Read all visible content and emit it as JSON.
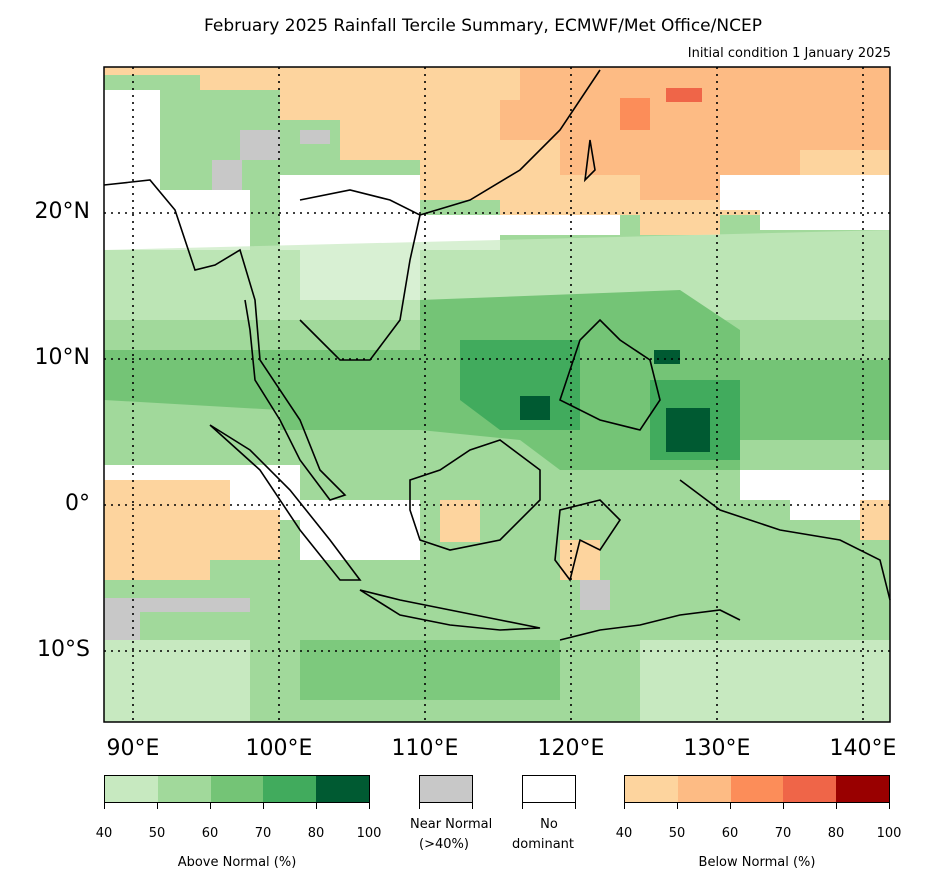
{
  "title": "February 2025 Rainfall Tercile Summary, ECMWF/Met Office/NCEP",
  "subtitle": "Initial condition 1 January 2025",
  "lat_labels": [
    "20°N",
    "10°N",
    "0°",
    "10°S"
  ],
  "lon_labels": [
    "90°E",
    "100°E",
    "110°E",
    "120°E",
    "130°E",
    "140°E"
  ],
  "colors": {
    "above": [
      "#c7e9c0",
      "#a1d99b",
      "#74c476",
      "#41ab5d",
      "#005a32"
    ],
    "below": [
      "#fdd49e",
      "#fdbb84",
      "#fc8d59",
      "#ef6548",
      "#990000"
    ],
    "near_normal": "#c8c8c8",
    "no_dominant": "#ffffff"
  },
  "legend": {
    "above_label": "Above Normal (%)",
    "above_ticks": [
      "40",
      "50",
      "60",
      "70",
      "80",
      "100"
    ],
    "near_normal_label_1": "Near Normal",
    "near_normal_label_2": "(>40%)",
    "no_dominant_label_1": "No",
    "no_dominant_label_2": "dominant",
    "below_label": "Below Normal (%)",
    "below_ticks": [
      "40",
      "50",
      "60",
      "70",
      "80",
      "100"
    ]
  },
  "map_extent": {
    "lon": [
      88,
      142
    ],
    "lat": [
      -15,
      30
    ]
  }
}
